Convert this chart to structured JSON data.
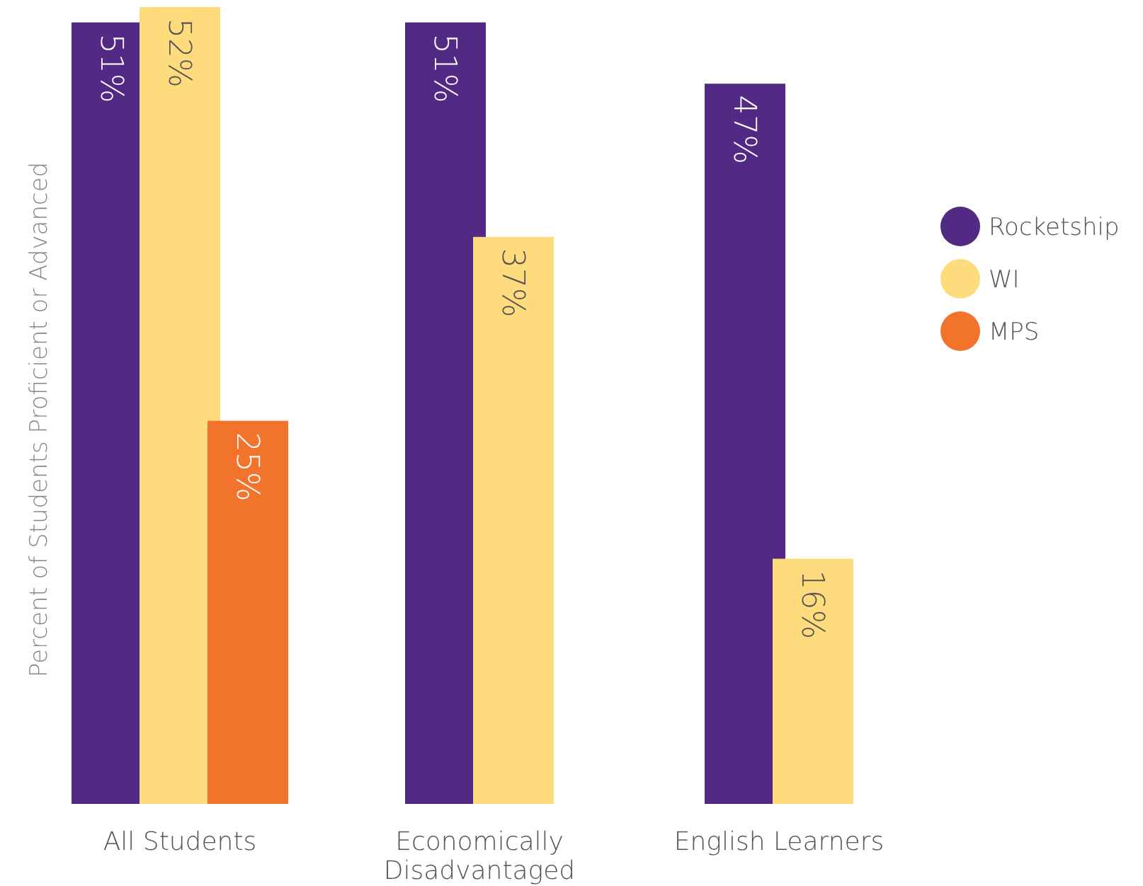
{
  "chart_data": {
    "type": "bar",
    "ylabel": "Percent of Students Proficient or Advanced",
    "categories": [
      "All Students",
      "Economically\nDisadvantaged",
      "English Learners"
    ],
    "series": [
      {
        "name": "Rocketship",
        "color": "#522a86",
        "values": [
          51,
          51,
          47
        ],
        "value_labels": [
          "51%",
          "51%",
          "47%"
        ]
      },
      {
        "name": "WI",
        "color": "#fedc7d",
        "values": [
          52,
          37,
          16
        ],
        "value_labels": [
          "52%",
          "37%",
          "16%"
        ]
      },
      {
        "name": "MPS",
        "color": "#f2742c",
        "values": [
          25,
          null,
          null
        ],
        "value_labels": [
          "25%",
          null,
          null
        ]
      }
    ],
    "legend": "right",
    "grid": false
  }
}
